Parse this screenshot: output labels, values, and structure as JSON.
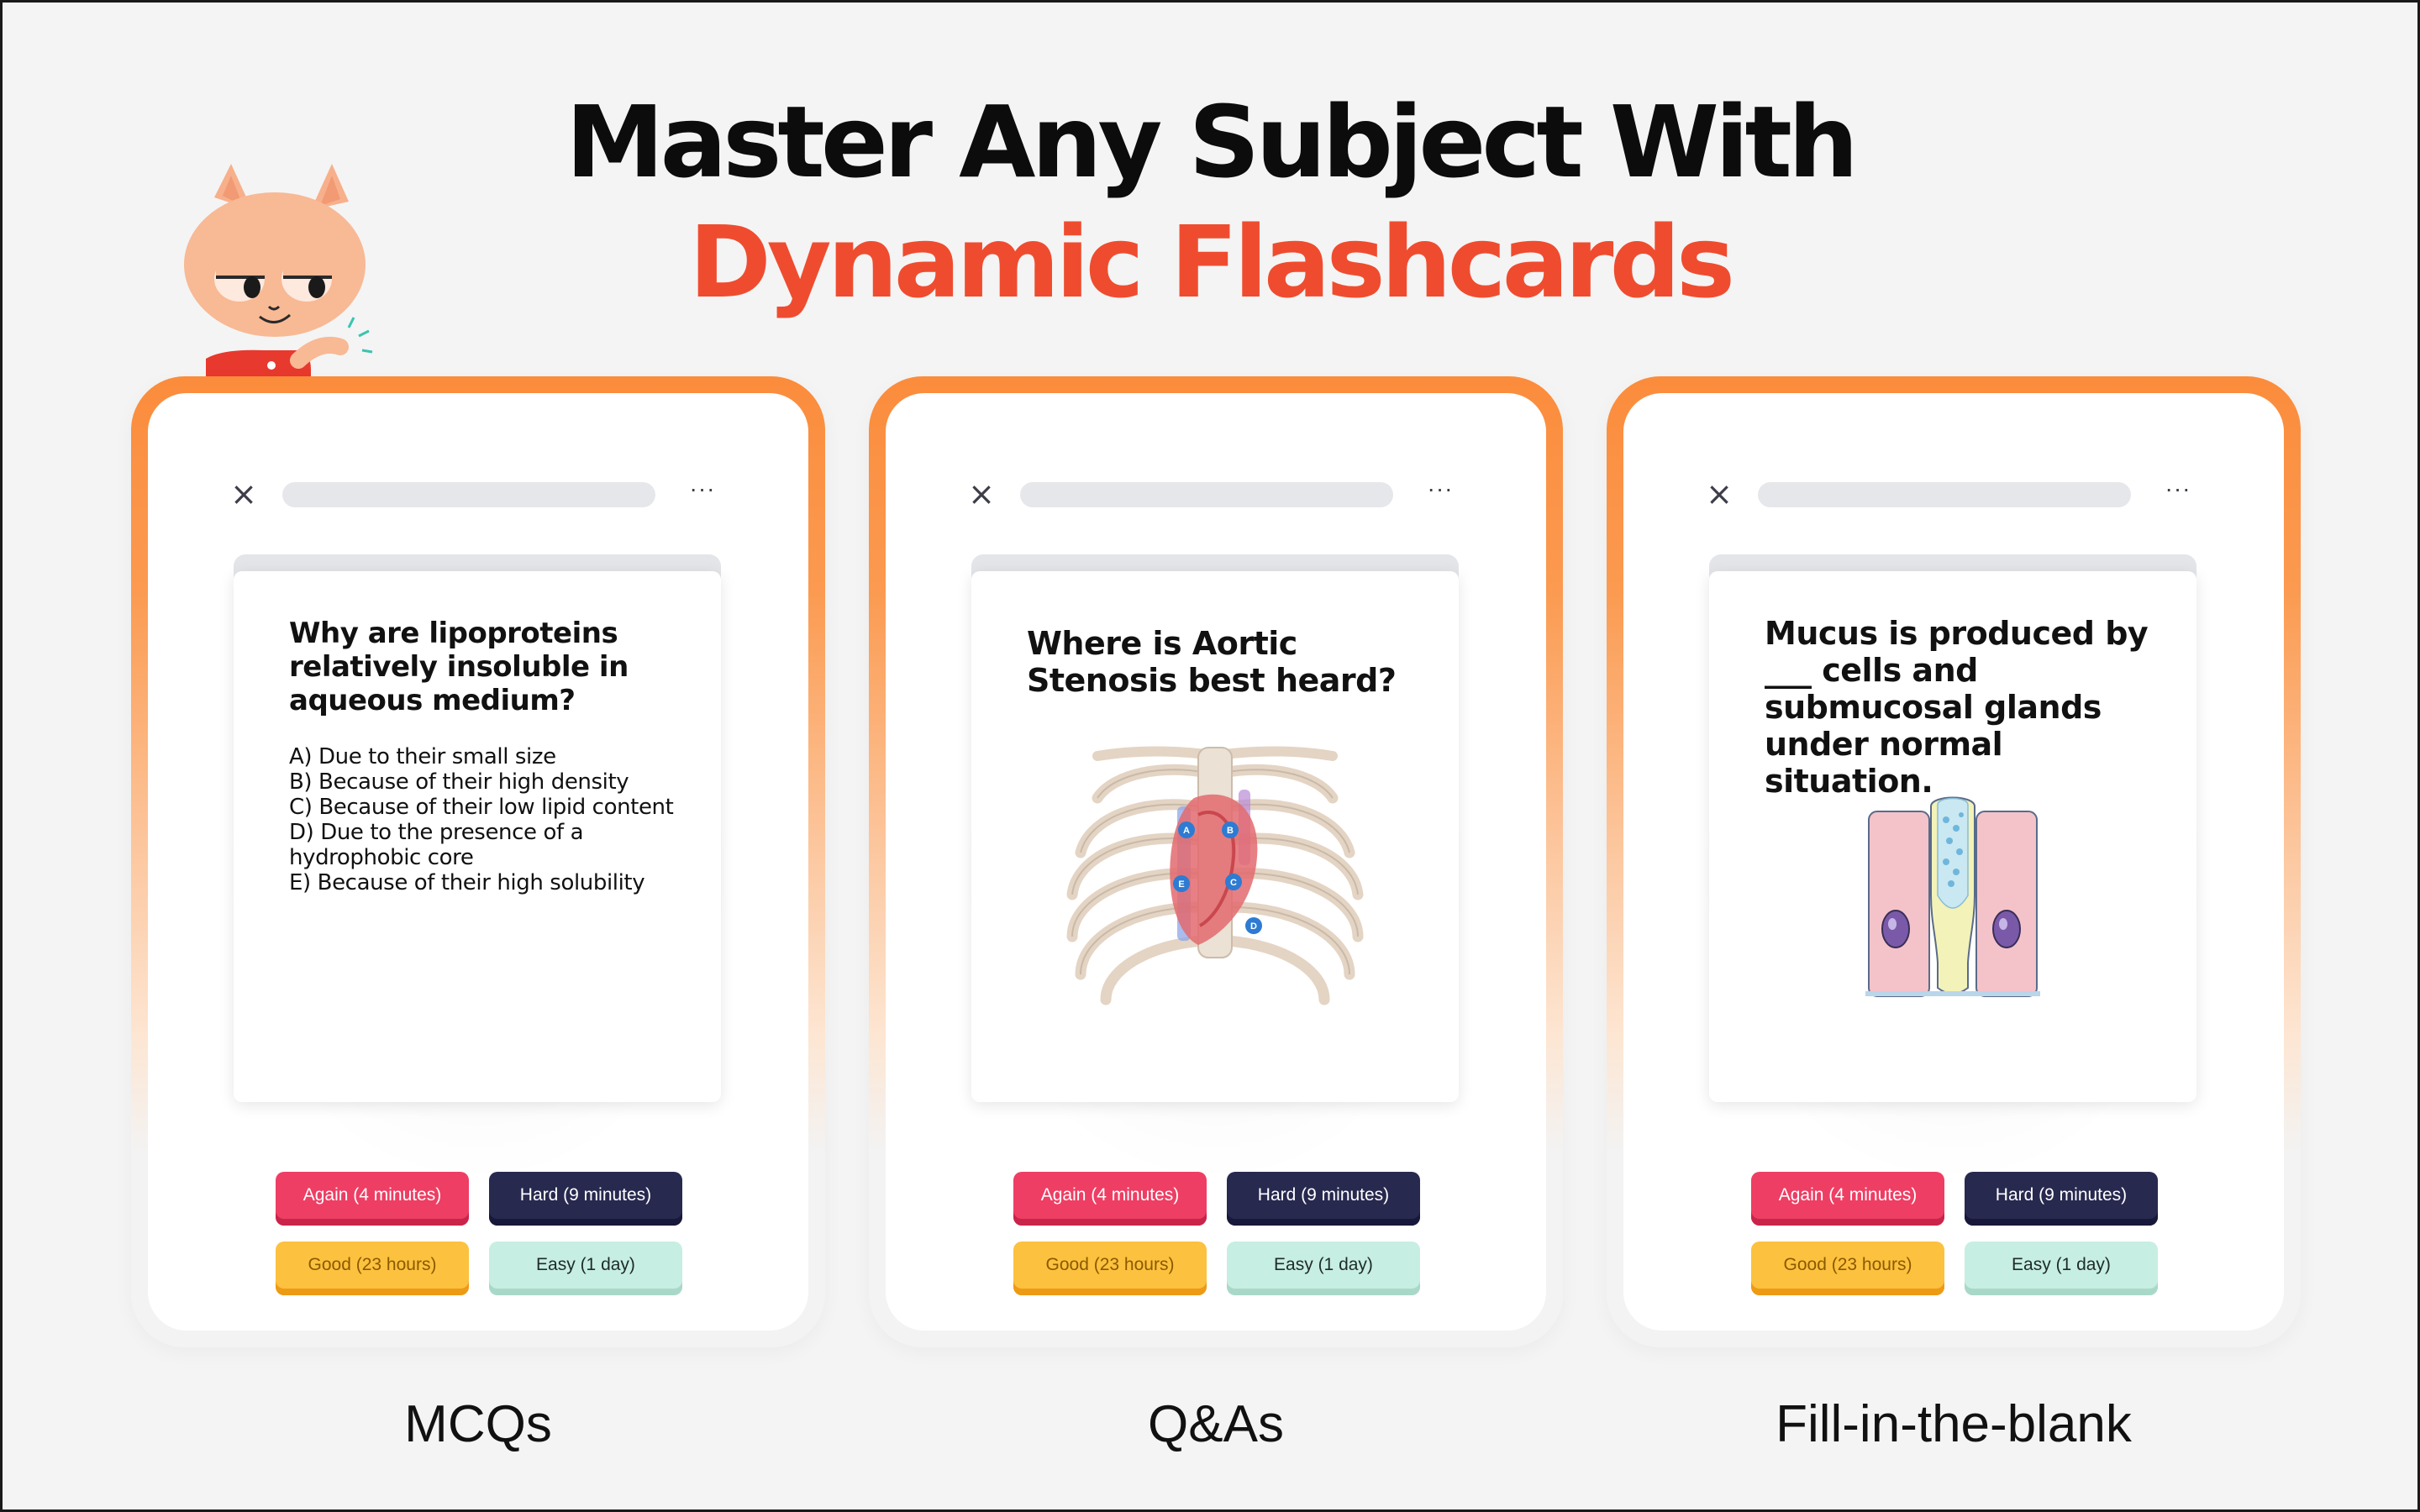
{
  "headline": {
    "line1": "Master Any Subject With",
    "line2": "Dynamic Flashcards"
  },
  "colors": {
    "accent_red": "#ef4c2f",
    "card_border_orange": "#fb8c3c",
    "again": "#ee3e64",
    "hard": "#28294f",
    "good": "#fcc13e",
    "easy": "#c7eee2"
  },
  "icons": {
    "close": "close-icon",
    "more": "more-dots-icon",
    "mascot": "cat-mascot"
  },
  "cards": [
    {
      "question": "Why are lipoproteins relatively insoluble in aqueous medium?",
      "options": [
        "A) Due to their small size",
        "B) Because of their high density",
        "C) Because of their low lipid content",
        "D) Due to the presence of a\nhydrophobic core",
        "E) Because of their high solubility"
      ],
      "caption": "MCQs"
    },
    {
      "question": "Where is Aortic Stenosis best heard?",
      "illustration": "chest-ribcage-heart",
      "markers": [
        "A",
        "B",
        "E",
        "C",
        "D"
      ],
      "caption": "Q&As"
    },
    {
      "question": "Mucus is produced by ___ cells and submucosal glands under normal situation.",
      "illustration": "goblet-cell",
      "caption": "Fill-in-the-blank"
    }
  ],
  "buttons": {
    "again": "Again (4 minutes)",
    "hard": "Hard (9 minutes)",
    "good": "Good (23 hours)",
    "easy": "Easy (1 day)"
  }
}
